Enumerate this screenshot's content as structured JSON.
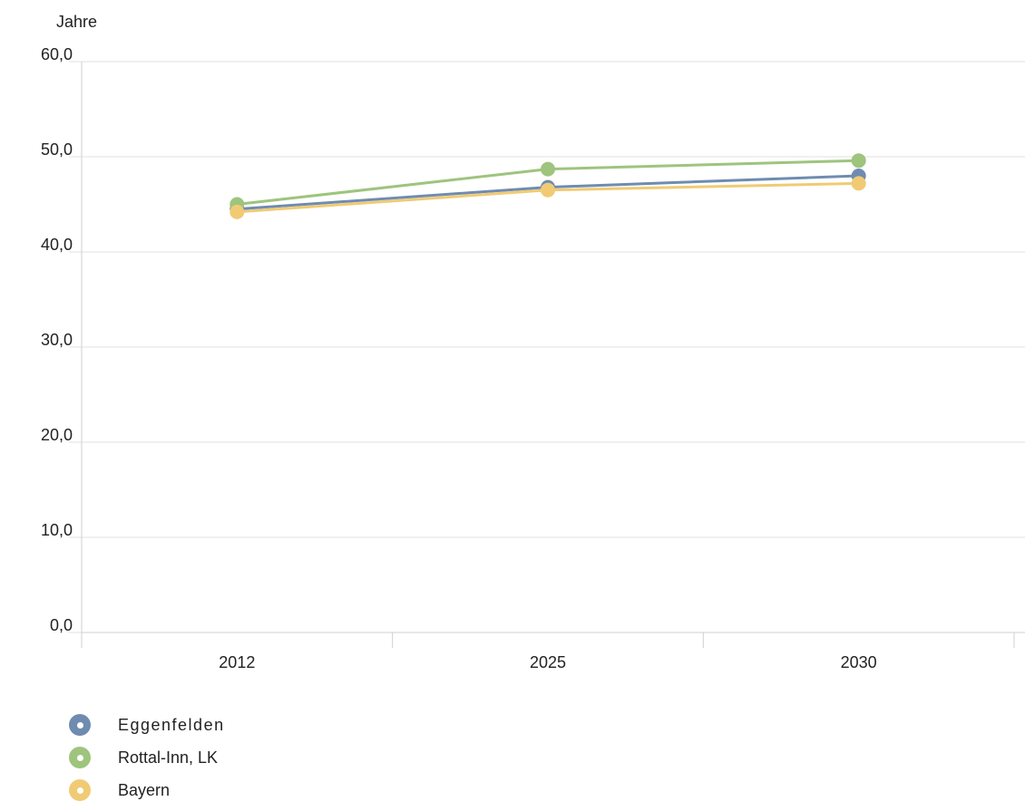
{
  "chart_data": {
    "type": "line",
    "unit_label": "Jahre",
    "categories": [
      "2012",
      "2025",
      "2030"
    ],
    "ylim": [
      0,
      60
    ],
    "y_ticks": [
      0,
      10,
      20,
      30,
      40,
      50,
      60
    ],
    "y_tick_labels": [
      "0,0",
      "10,0",
      "20,0",
      "30,0",
      "40,0",
      "50,0",
      "60,0"
    ],
    "grid": true,
    "legend_position": "bottom-left",
    "series": [
      {
        "name": "Eggenfelden",
        "color": "#6f8cb0",
        "values": [
          44.5,
          46.8,
          48.0
        ]
      },
      {
        "name": "Rottal-Inn, LK",
        "color": "#9ec47e",
        "values": [
          45.0,
          48.7,
          49.6
        ]
      },
      {
        "name": "Bayern",
        "color": "#f0cb74",
        "values": [
          44.2,
          46.5,
          47.2
        ]
      }
    ]
  }
}
